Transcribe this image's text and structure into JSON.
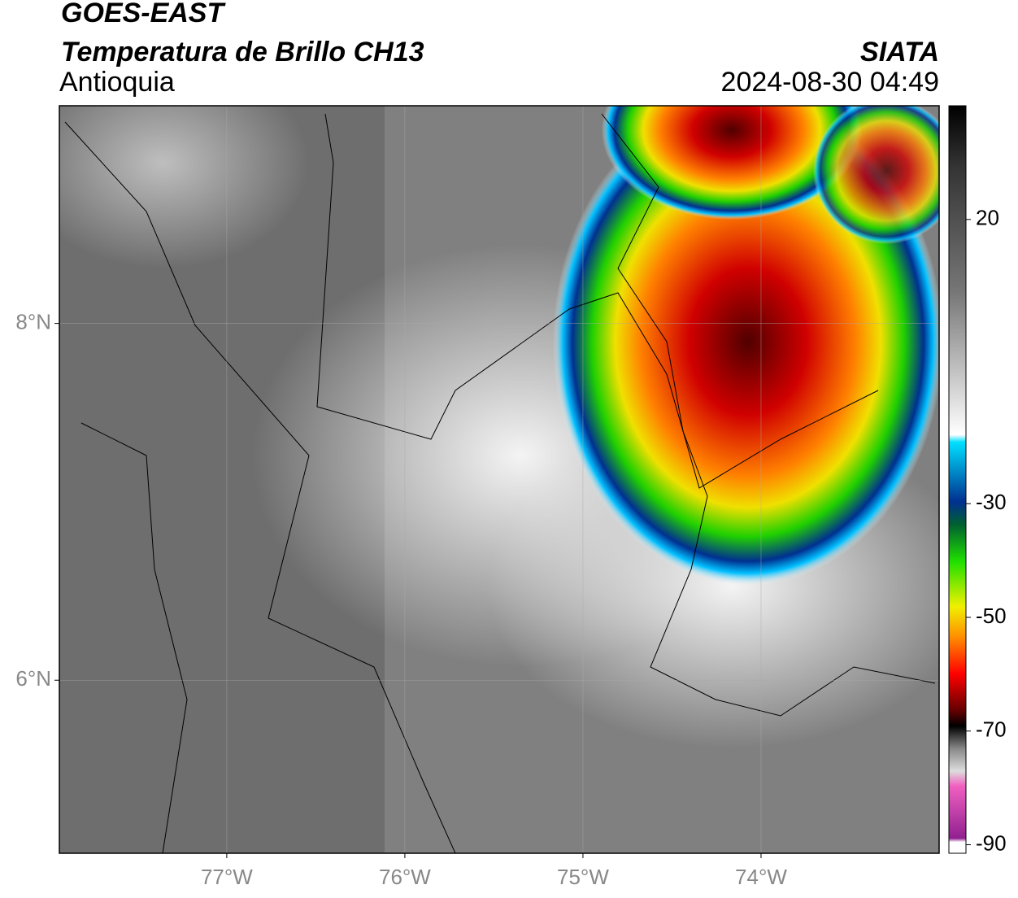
{
  "header": {
    "title": "GOES-EAST",
    "subtitle": "Temperatura de Brillo CH13",
    "region": "Antioquia",
    "source": "SIATA",
    "datetime": "2024-08-30 04:49"
  },
  "map": {
    "lonlim": [
      -77.94,
      -73.0
    ],
    "latlim": [
      5.03,
      9.22
    ],
    "lonticks": [
      {
        "value": -77,
        "label": "77°W"
      },
      {
        "value": -76,
        "label": "76°W"
      },
      {
        "value": -75,
        "label": "75°W"
      },
      {
        "value": -74,
        "label": "74°W"
      }
    ],
    "latticks": [
      {
        "value": 6,
        "label": "6°N"
      },
      {
        "value": 8,
        "label": "8°N"
      }
    ],
    "grid": true
  },
  "colorbar": {
    "lim": [
      -91.5,
      40
    ],
    "ticks": [
      20,
      -30,
      -50,
      -70,
      -90
    ]
  }
}
